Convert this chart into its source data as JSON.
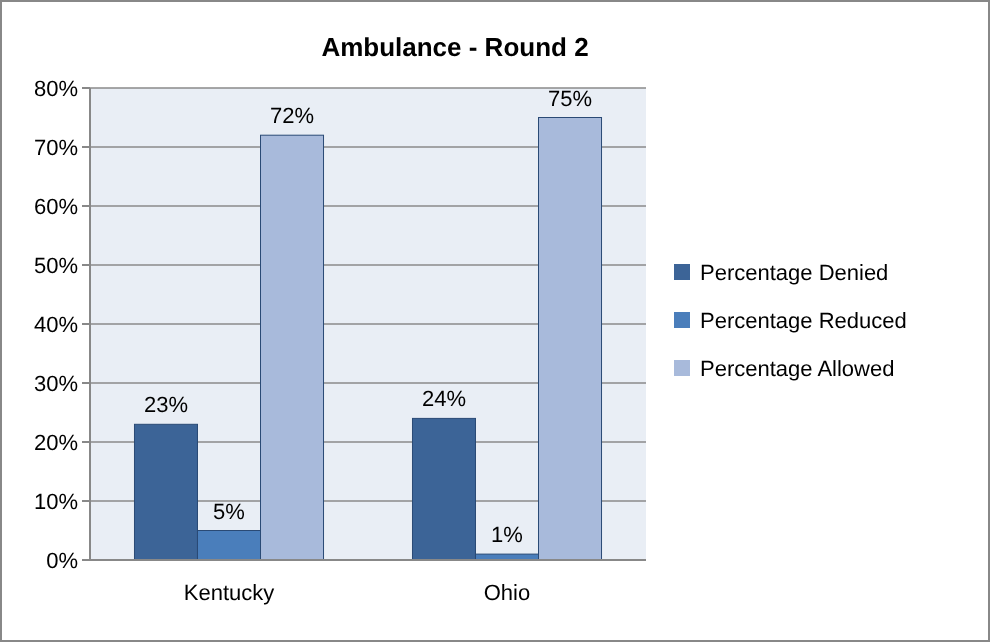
{
  "chart_data": {
    "type": "bar",
    "title": "Ambulance - Round 2",
    "categories": [
      "Kentucky",
      "Ohio"
    ],
    "series": [
      {
        "name": "Percentage Denied",
        "color": "#3c6497",
        "values": [
          23,
          24
        ],
        "value_labels": [
          "23%",
          "24%"
        ]
      },
      {
        "name": "Percentage Reduced",
        "color": "#4a7ebb",
        "values": [
          5,
          1
        ],
        "value_labels": [
          "5%",
          "1%"
        ]
      },
      {
        "name": "Percentage Allowed",
        "color": "#a8badb",
        "values": [
          72,
          75
        ],
        "value_labels": [
          "72%",
          "75%"
        ]
      }
    ],
    "ylim": [
      0,
      80
    ],
    "yticks": [
      {
        "value": 0,
        "label": "0%"
      },
      {
        "value": 10,
        "label": "10%"
      },
      {
        "value": 20,
        "label": "20%"
      },
      {
        "value": 30,
        "label": "30%"
      },
      {
        "value": 40,
        "label": "40%"
      },
      {
        "value": 50,
        "label": "50%"
      },
      {
        "value": 60,
        "label": "60%"
      },
      {
        "value": 70,
        "label": "70%"
      },
      {
        "value": 80,
        "label": "80%"
      }
    ],
    "grid": "y",
    "legend": "right"
  }
}
